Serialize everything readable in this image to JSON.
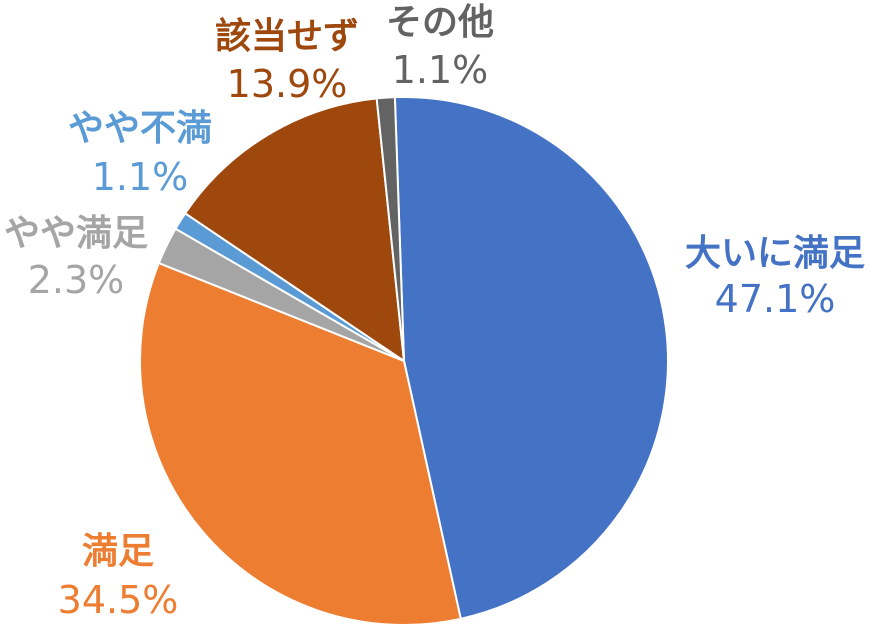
{
  "chart_data": {
    "type": "pie",
    "start_angle_deg": -1.98,
    "direction": "clockwise",
    "slices": [
      {
        "label": "大いに満足",
        "value": 47.1,
        "value_label": "47.1%",
        "color": "#4472C4"
      },
      {
        "label": "満足",
        "value": 34.5,
        "value_label": "34.5%",
        "color": "#ED7D31"
      },
      {
        "label": "やや満足",
        "value": 2.3,
        "value_label": "2.3%",
        "color": "#A5A5A5"
      },
      {
        "label": "やや不満",
        "value": 1.1,
        "value_label": "1.1%",
        "color": "#5B9BD5"
      },
      {
        "label": "該当せず",
        "value": 13.9,
        "value_label": "13.9%",
        "color": "#9E480E"
      },
      {
        "label": "その他",
        "value": 1.1,
        "value_label": "1.1%",
        "color": "#636363"
      }
    ],
    "label_colors": [
      "#4472C4",
      "#ED7D31",
      "#A5A5A5",
      "#5B9BD5",
      "#9E480E",
      "#636363"
    ],
    "legend": "none",
    "data_labels": "outside"
  }
}
